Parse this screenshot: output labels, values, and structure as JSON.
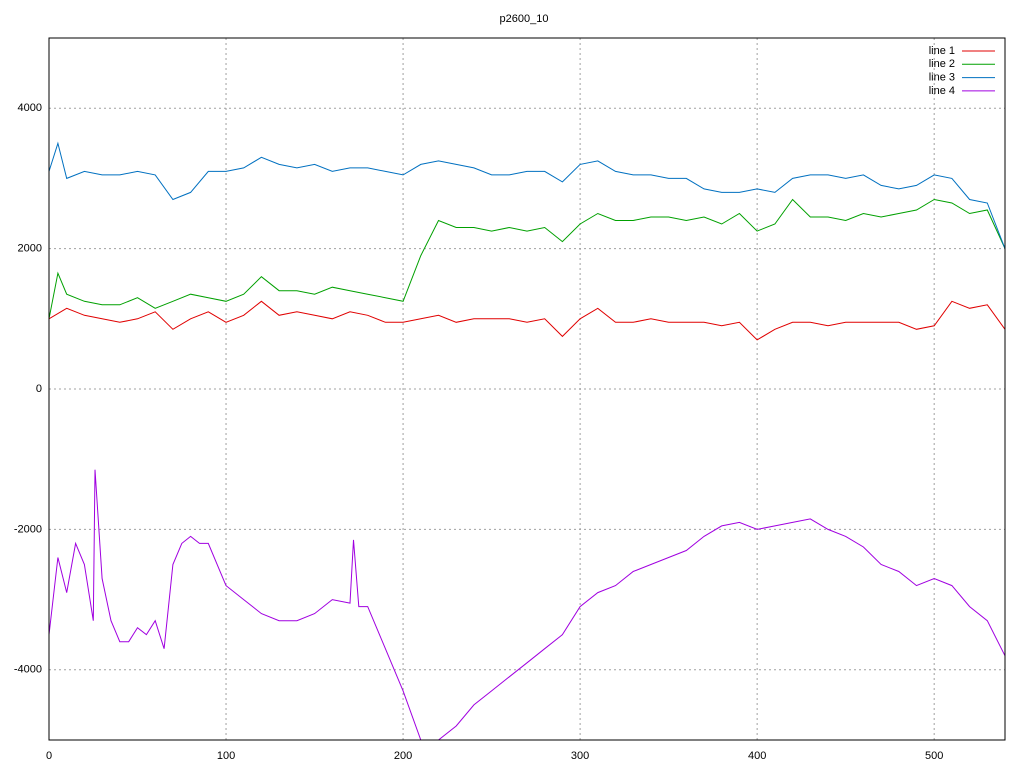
{
  "chart_data": {
    "type": "line",
    "title": "p2600_10",
    "xlim": [
      0,
      540
    ],
    "ylim": [
      -5000,
      5000
    ],
    "xticks": [
      0,
      100,
      200,
      300,
      400,
      500
    ],
    "yticks": [
      -4000,
      -2000,
      0,
      2000,
      4000
    ],
    "grid": true,
    "legend": "top-right",
    "series": [
      {
        "name": "line 1",
        "color": "#e00000",
        "x": [
          0,
          10,
          20,
          30,
          40,
          50,
          60,
          70,
          80,
          90,
          100,
          110,
          120,
          130,
          140,
          150,
          160,
          170,
          180,
          190,
          200,
          210,
          220,
          230,
          240,
          250,
          260,
          270,
          280,
          290,
          300,
          310,
          320,
          330,
          340,
          350,
          360,
          370,
          380,
          390,
          400,
          410,
          420,
          430,
          440,
          450,
          460,
          470,
          480,
          490,
          500,
          510,
          520,
          530,
          540
        ],
        "values": [
          1000,
          1150,
          1050,
          1000,
          950,
          1000,
          1100,
          850,
          1000,
          1100,
          950,
          1050,
          1250,
          1050,
          1100,
          1050,
          1000,
          1100,
          1050,
          950,
          950,
          1000,
          1050,
          950,
          1000,
          1000,
          1000,
          950,
          1000,
          750,
          1000,
          1150,
          950,
          950,
          1000,
          950,
          950,
          950,
          900,
          950,
          700,
          850,
          950,
          950,
          900,
          950,
          950,
          950,
          950,
          850,
          900,
          1250,
          1150,
          1200,
          850
        ]
      },
      {
        "name": "line 2",
        "color": "#00a000",
        "x": [
          0,
          5,
          10,
          20,
          30,
          40,
          50,
          60,
          70,
          80,
          90,
          100,
          110,
          120,
          130,
          140,
          150,
          160,
          170,
          180,
          190,
          200,
          210,
          220,
          230,
          240,
          250,
          260,
          270,
          280,
          290,
          300,
          310,
          320,
          330,
          340,
          350,
          360,
          370,
          380,
          390,
          400,
          410,
          420,
          430,
          440,
          450,
          460,
          470,
          480,
          490,
          500,
          510,
          520,
          530,
          540
        ],
        "values": [
          1000,
          1650,
          1350,
          1250,
          1200,
          1200,
          1300,
          1150,
          1250,
          1350,
          1300,
          1250,
          1350,
          1600,
          1400,
          1400,
          1350,
          1450,
          1400,
          1350,
          1300,
          1250,
          1900,
          2400,
          2300,
          2300,
          2250,
          2300,
          2250,
          2300,
          2100,
          2350,
          2500,
          2400,
          2400,
          2450,
          2450,
          2400,
          2450,
          2350,
          2500,
          2250,
          2350,
          2700,
          2450,
          2450,
          2400,
          2500,
          2450,
          2500,
          2550,
          2700,
          2650,
          2500,
          2550,
          2000
        ]
      },
      {
        "name": "line 3",
        "color": "#0070c0",
        "x": [
          0,
          5,
          10,
          20,
          30,
          40,
          50,
          60,
          70,
          80,
          90,
          100,
          110,
          120,
          130,
          140,
          150,
          160,
          170,
          180,
          190,
          200,
          210,
          220,
          230,
          240,
          250,
          260,
          270,
          280,
          290,
          300,
          310,
          320,
          330,
          340,
          350,
          360,
          370,
          380,
          390,
          400,
          410,
          420,
          430,
          440,
          450,
          460,
          470,
          480,
          490,
          500,
          510,
          520,
          530,
          540
        ],
        "values": [
          3100,
          3500,
          3000,
          3100,
          3050,
          3050,
          3100,
          3050,
          2700,
          2800,
          3100,
          3100,
          3150,
          3300,
          3200,
          3150,
          3200,
          3100,
          3150,
          3150,
          3100,
          3050,
          3200,
          3250,
          3200,
          3150,
          3050,
          3050,
          3100,
          3100,
          2950,
          3200,
          3250,
          3100,
          3050,
          3050,
          3000,
          3000,
          2850,
          2800,
          2800,
          2850,
          2800,
          3000,
          3050,
          3050,
          3000,
          3050,
          2900,
          2850,
          2900,
          3050,
          3000,
          2700,
          2650,
          2000
        ]
      },
      {
        "name": "line 4",
        "color": "#a000e0",
        "x": [
          0,
          5,
          10,
          15,
          20,
          25,
          26,
          30,
          35,
          40,
          45,
          50,
          55,
          60,
          65,
          70,
          75,
          80,
          85,
          90,
          100,
          110,
          120,
          130,
          140,
          150,
          160,
          170,
          172,
          175,
          180,
          190,
          200,
          210,
          220,
          230,
          240,
          250,
          260,
          270,
          280,
          290,
          300,
          310,
          320,
          330,
          340,
          350,
          360,
          370,
          380,
          390,
          400,
          410,
          420,
          430,
          440,
          450,
          460,
          470,
          480,
          490,
          500,
          510,
          520,
          530,
          540
        ],
        "values": [
          -3500,
          -2400,
          -2900,
          -2200,
          -2500,
          -3300,
          -1150,
          -2700,
          -3300,
          -3600,
          -3600,
          -3400,
          -3500,
          -3300,
          -3700,
          -2500,
          -2200,
          -2100,
          -2200,
          -2200,
          -2800,
          -3000,
          -3200,
          -3300,
          -3300,
          -3200,
          -3000,
          -3050,
          -2150,
          -3100,
          -3100,
          -3700,
          -4300,
          -5000,
          -5000,
          -4800,
          -4500,
          -4300,
          -4100,
          -3900,
          -3700,
          -3500,
          -3100,
          -2900,
          -2800,
          -2600,
          -2500,
          -2400,
          -2300,
          -2100,
          -1950,
          -1900,
          -2000,
          -1950,
          -1900,
          -1850,
          -2000,
          -2100,
          -2250,
          -2500,
          -2600,
          -2800,
          -2700,
          -2800,
          -3100,
          -3300,
          -3800
        ]
      }
    ]
  }
}
